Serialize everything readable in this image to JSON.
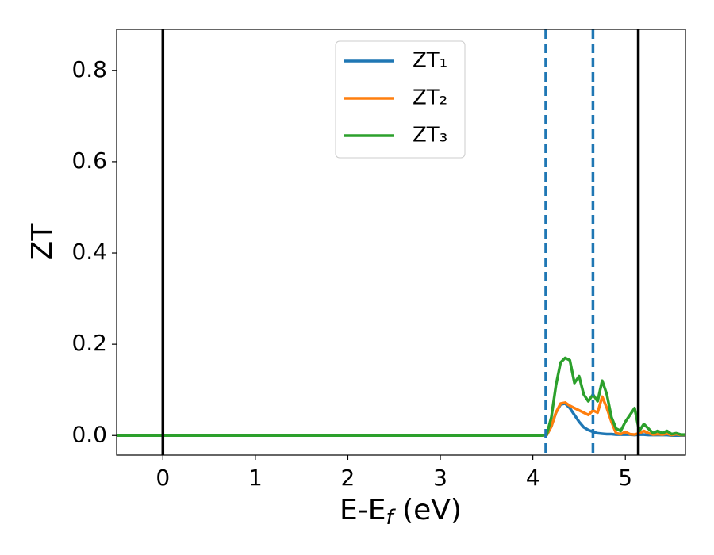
{
  "chart_data": {
    "type": "line",
    "xlabel": {
      "base": "E-E",
      "sub": "f",
      "rest": " (eV)"
    },
    "ylabel": "ZT",
    "xlim": [
      -0.5,
      5.65
    ],
    "ylim": [
      -0.043,
      0.89
    ],
    "xticks": [
      0,
      1,
      2,
      3,
      4,
      5
    ],
    "yticks": [
      {
        "value": 0,
        "label": "0.0"
      },
      {
        "value": 0.2,
        "label": "0.2"
      },
      {
        "value": 0.4,
        "label": "0.4"
      },
      {
        "value": 0.6,
        "label": "0.6"
      },
      {
        "value": 0.8,
        "label": "0.8"
      }
    ],
    "legend": "upper center",
    "vlines": [
      {
        "x": 0,
        "style": "solid",
        "color": "#000000"
      },
      {
        "x": 4.14,
        "style": "dashed",
        "color": "#1f77b4"
      },
      {
        "x": 4.65,
        "style": "dashed",
        "color": "#1f77b4"
      },
      {
        "x": 5.14,
        "style": "solid",
        "color": "#000000"
      }
    ],
    "x": [
      -0.5,
      4.0,
      4.1,
      4.15,
      4.2,
      4.25,
      4.3,
      4.35,
      4.4,
      4.45,
      4.5,
      4.55,
      4.6,
      4.65,
      4.7,
      4.75,
      4.8,
      4.85,
      4.9,
      4.95,
      5.0,
      5.05,
      5.1,
      5.15,
      5.2,
      5.25,
      5.3,
      5.35,
      5.4,
      5.45,
      5.5,
      5.55,
      5.6,
      5.65
    ],
    "series": [
      {
        "name": "ZT₁",
        "color": "#1f77b4",
        "values": [
          0,
          0,
          0,
          0.001,
          0.02,
          0.05,
          0.068,
          0.07,
          0.06,
          0.045,
          0.03,
          0.018,
          0.012,
          0.008,
          0.005,
          0.004,
          0.003,
          0.003,
          0.002,
          0.002,
          0.002,
          0.002,
          0.001,
          0.002,
          0.002,
          0.001,
          0.001,
          0.001,
          0.001,
          0.001,
          0,
          0,
          0,
          0
        ]
      },
      {
        "name": "ZT₂",
        "color": "#ff7f0e",
        "values": [
          0,
          0,
          0,
          0.001,
          0.02,
          0.05,
          0.07,
          0.072,
          0.065,
          0.06,
          0.055,
          0.05,
          0.045,
          0.055,
          0.05,
          0.085,
          0.06,
          0.03,
          0.005,
          0.003,
          0.008,
          0.003,
          0.002,
          0.005,
          0.01,
          0.005,
          0.002,
          0.003,
          0.002,
          0.004,
          0.001,
          0.003,
          0.001,
          0.001
        ]
      },
      {
        "name": "ZT₃",
        "color": "#2ca02c",
        "values": [
          0,
          0,
          0,
          0.002,
          0.04,
          0.11,
          0.16,
          0.17,
          0.165,
          0.115,
          0.13,
          0.09,
          0.075,
          0.09,
          0.075,
          0.12,
          0.09,
          0.04,
          0.015,
          0.01,
          0.03,
          0.045,
          0.06,
          0.01,
          0.025,
          0.015,
          0.005,
          0.01,
          0.005,
          0.01,
          0.003,
          0.005,
          0.002,
          0.002
        ]
      }
    ]
  }
}
